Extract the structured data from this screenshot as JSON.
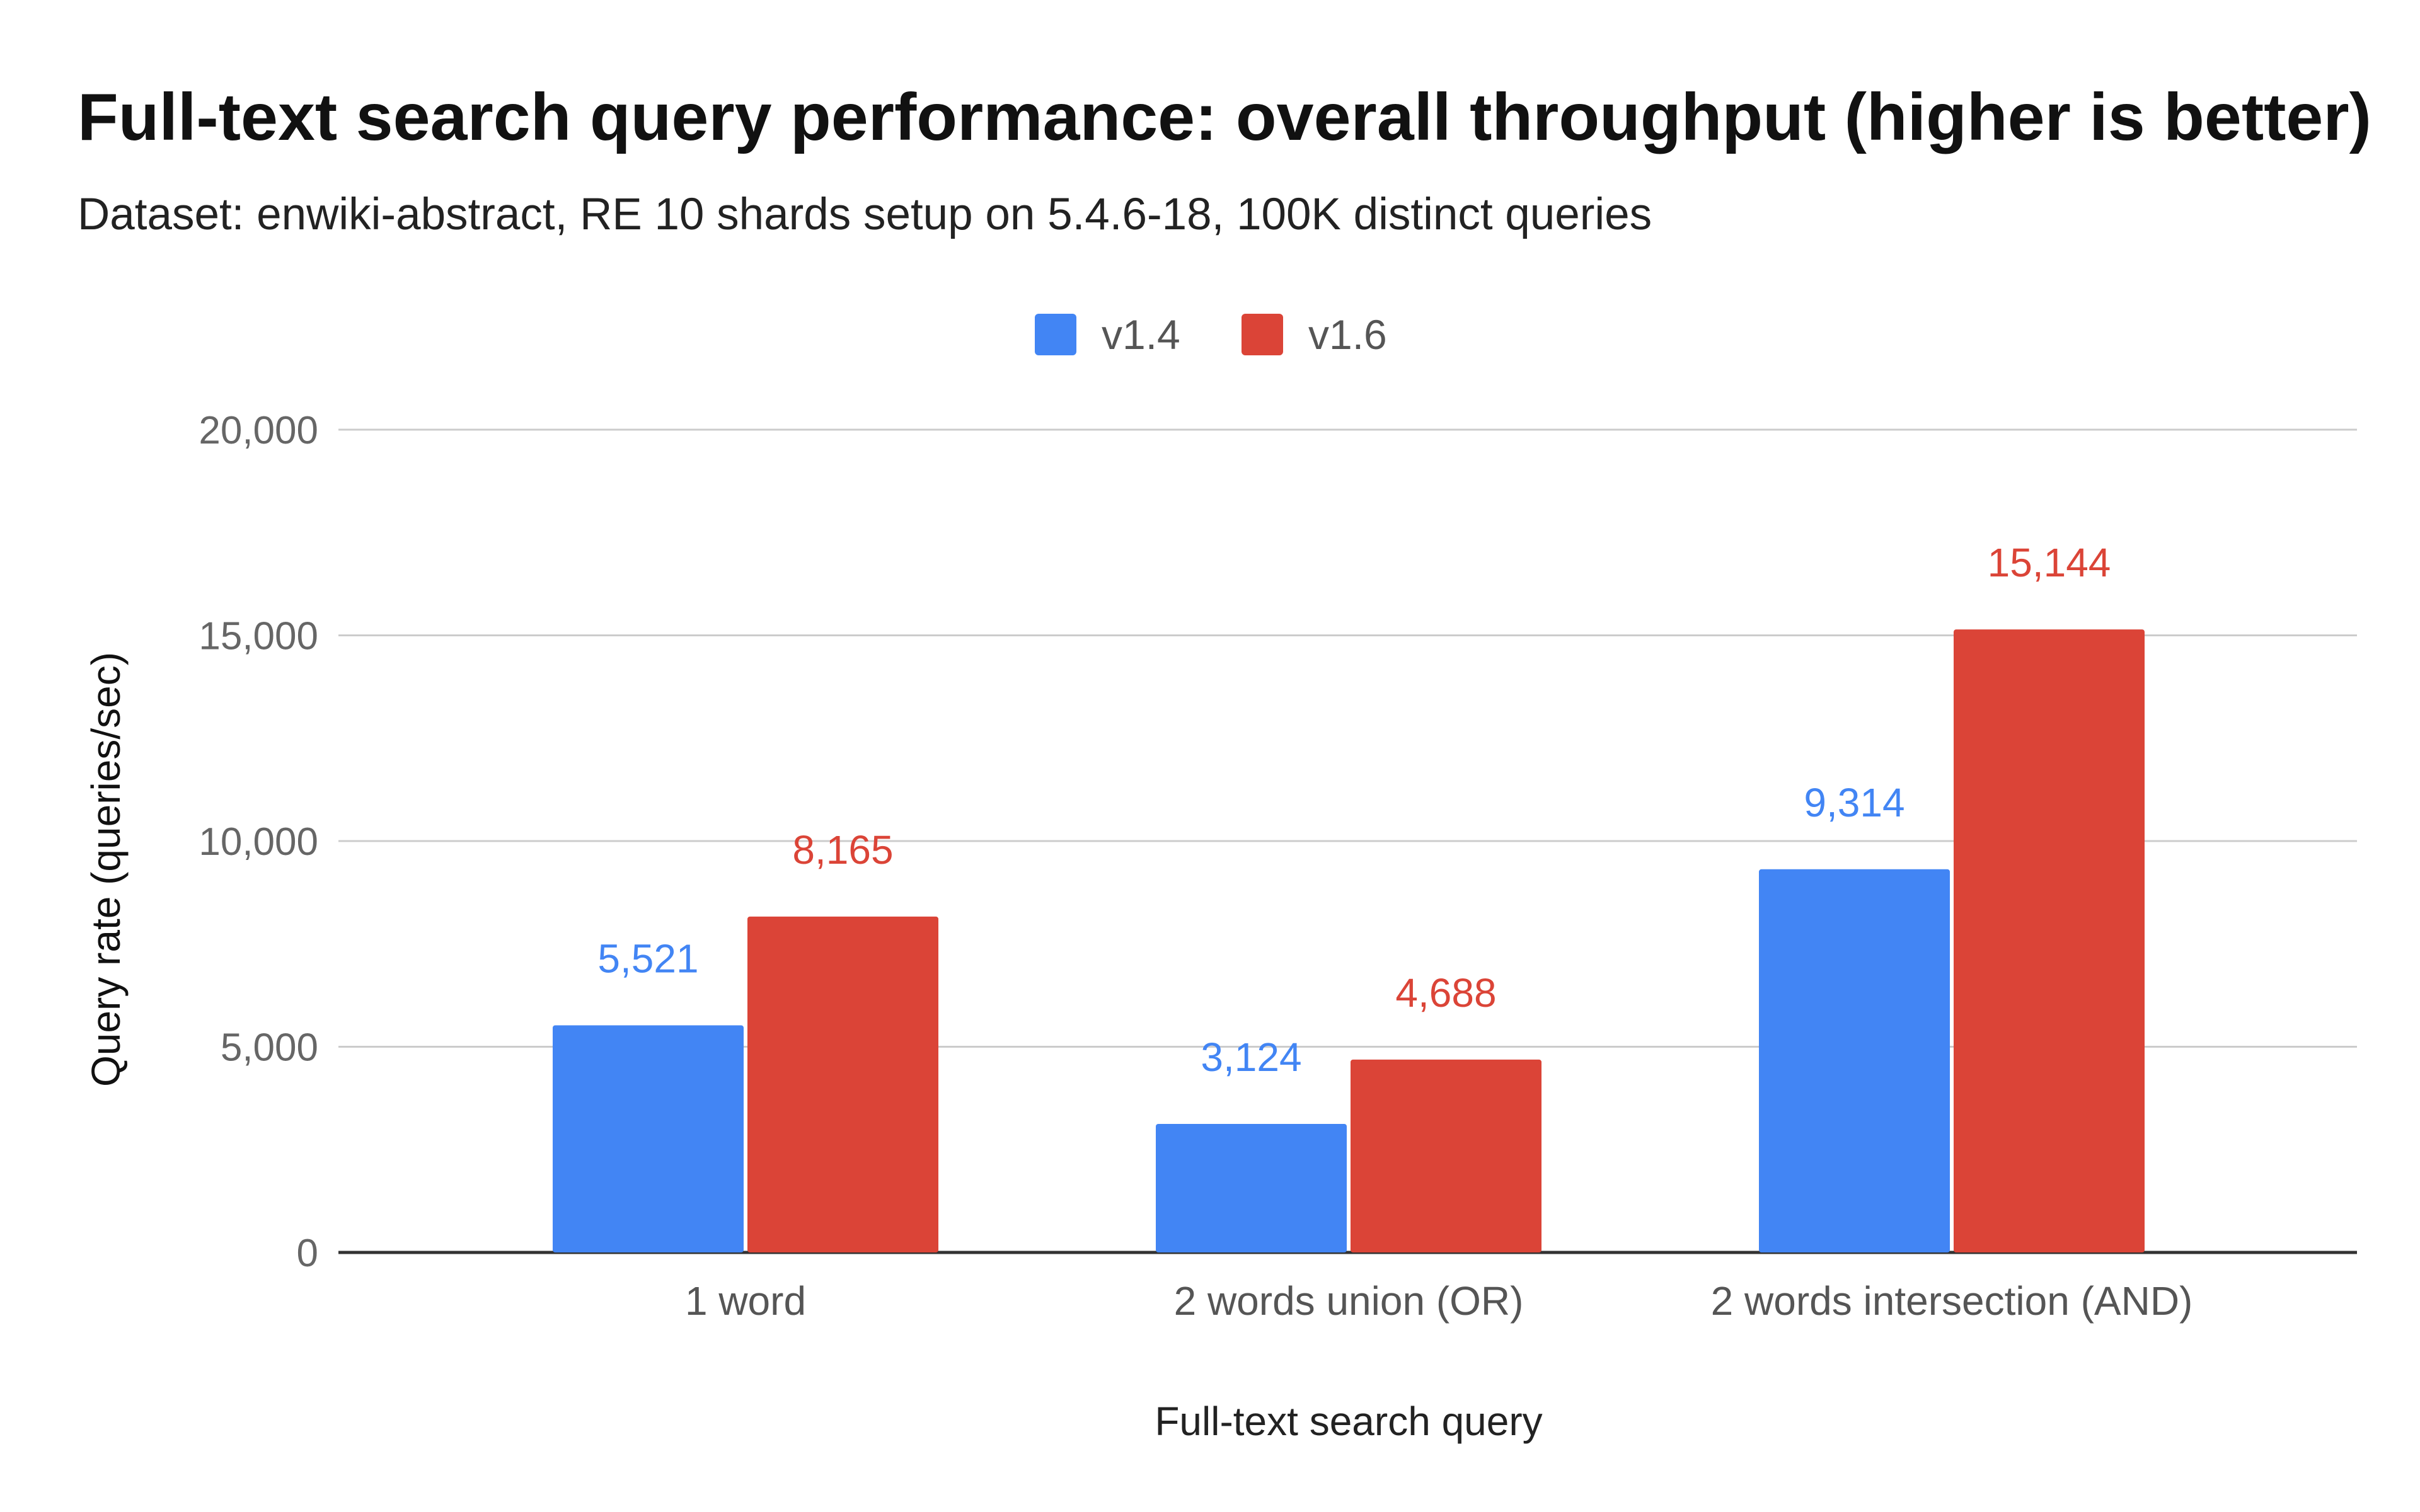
{
  "title": "Full-text search query performance: overall throughput (higher is better)",
  "subtitle": "Dataset: enwiki-abstract, RE 10 shards setup on 5.4.6-18, 100K distinct queries",
  "chart_data": {
    "type": "bar",
    "categories": [
      "1 word",
      "2 words union (OR)",
      "2 words intersection (AND)"
    ],
    "series": [
      {
        "name": "v1.4",
        "color": "#4285f4",
        "values": [
          5521,
          3124,
          9314
        ]
      },
      {
        "name": "v1.6",
        "color": "#db4437",
        "values": [
          8165,
          4688,
          15144
        ]
      }
    ],
    "data_labels": [
      [
        "5,521",
        "3,124",
        "9,314"
      ],
      [
        "8,165",
        "4,688",
        "15,144"
      ]
    ],
    "xlabel": "Full-text search query",
    "ylabel": "Query rate (queries/sec)",
    "ylim": [
      0,
      20000
    ],
    "yticks": [
      0,
      5000,
      10000,
      15000,
      20000
    ],
    "ytick_labels": [
      "0",
      "5,000",
      "10,000",
      "15,000",
      "20,000"
    ],
    "grid": true,
    "legend_position": "top-center"
  }
}
